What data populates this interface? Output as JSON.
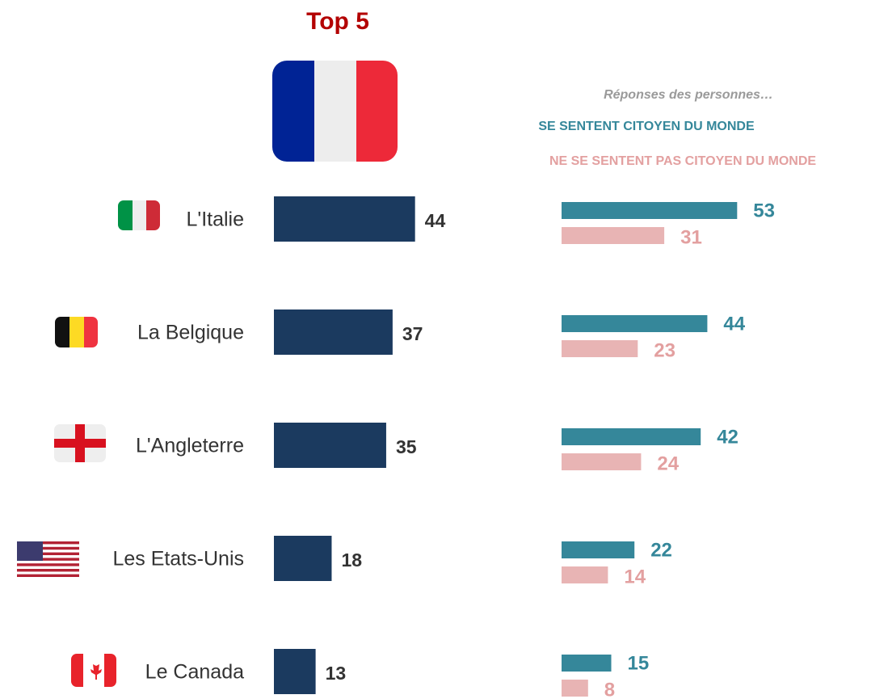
{
  "chart_data": [
    {
      "type": "bar",
      "title": "Top 5",
      "categories": [
        "L'Italie",
        "La Belgique",
        "L'Angleterre",
        "Les Etats-Unis",
        "Le Canada"
      ],
      "values": [
        44,
        37,
        35,
        18,
        13
      ],
      "color": "#1b3a5f"
    },
    {
      "type": "bar",
      "subtitle": "Réponses des personnes…",
      "series": [
        {
          "name": "SE SENTENT CITOYEN DU MONDE",
          "color": "#35879a",
          "values": [
            53,
            44,
            42,
            22,
            15
          ]
        },
        {
          "name": "NE SE SENTENT PAS CITOYEN DU MONDE",
          "color": "#e8b4b4",
          "values": [
            31,
            23,
            24,
            14,
            8
          ]
        }
      ]
    }
  ]
}
